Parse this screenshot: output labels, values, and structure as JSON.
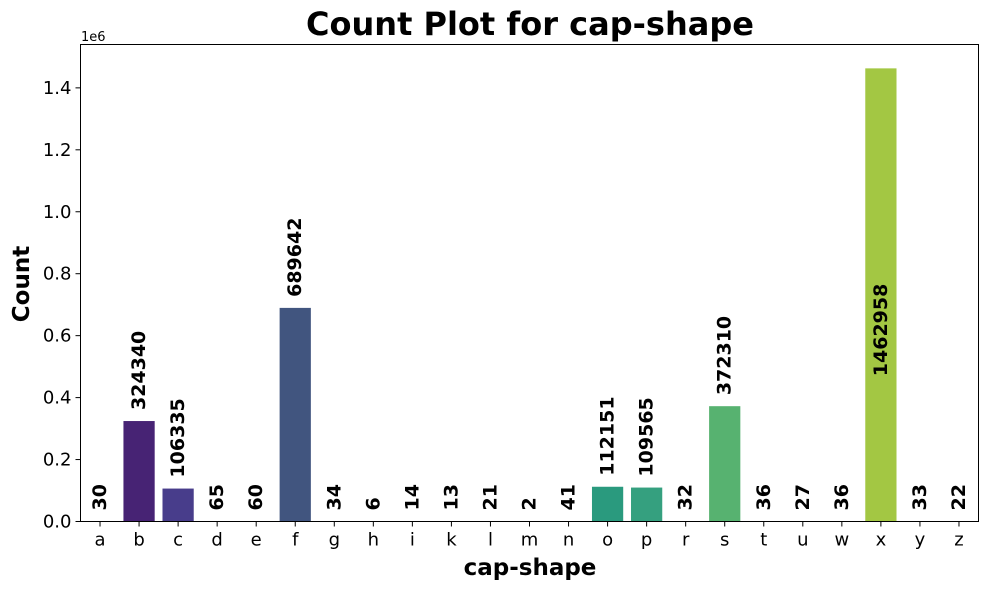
{
  "chart_data": {
    "type": "bar",
    "title": "Count Plot for cap-shape",
    "xlabel": "cap-shape",
    "ylabel": "Count",
    "y_offset_label": "1e6",
    "ylim": [
      0,
      1540000
    ],
    "y_ticks": [
      0,
      200000,
      400000,
      600000,
      800000,
      1000000,
      1200000,
      1400000
    ],
    "y_tick_labels": [
      "0.0",
      "0.2",
      "0.4",
      "0.6",
      "0.8",
      "1.0",
      "1.2",
      "1.4"
    ],
    "grid": false,
    "legend": "none",
    "categories": [
      "a",
      "b",
      "c",
      "d",
      "e",
      "f",
      "g",
      "h",
      "i",
      "k",
      "l",
      "m",
      "n",
      "o",
      "p",
      "r",
      "s",
      "t",
      "u",
      "w",
      "x",
      "y",
      "z"
    ],
    "values": [
      30,
      324340,
      106335,
      65,
      60,
      689642,
      34,
      6,
      14,
      13,
      21,
      2,
      41,
      112151,
      109565,
      32,
      372310,
      36,
      27,
      36,
      1462958,
      33,
      22
    ],
    "data_labels": [
      "30",
      "324340",
      "106335",
      "65",
      "60",
      "689642",
      "34",
      "6",
      "14",
      "13",
      "21",
      "2",
      "41",
      "112151",
      "109565",
      "32",
      "372310",
      "36",
      "27",
      "36",
      "1462958",
      "33",
      "22"
    ],
    "colors": [
      "#440154",
      "#472374",
      "#483d8b",
      "#40498e",
      "#3b528b",
      "#41557f",
      "#375b8d",
      "#31688e",
      "#2c728e",
      "#277f8e",
      "#238a8d",
      "#1f948c",
      "#1fa187",
      "#2a9a7e",
      "#35a07f",
      "#4ab07a",
      "#57b270",
      "#6ec05c",
      "#85c84e",
      "#9fcf41",
      "#a3c743",
      "#c9dc32",
      "#e7e419"
    ]
  }
}
